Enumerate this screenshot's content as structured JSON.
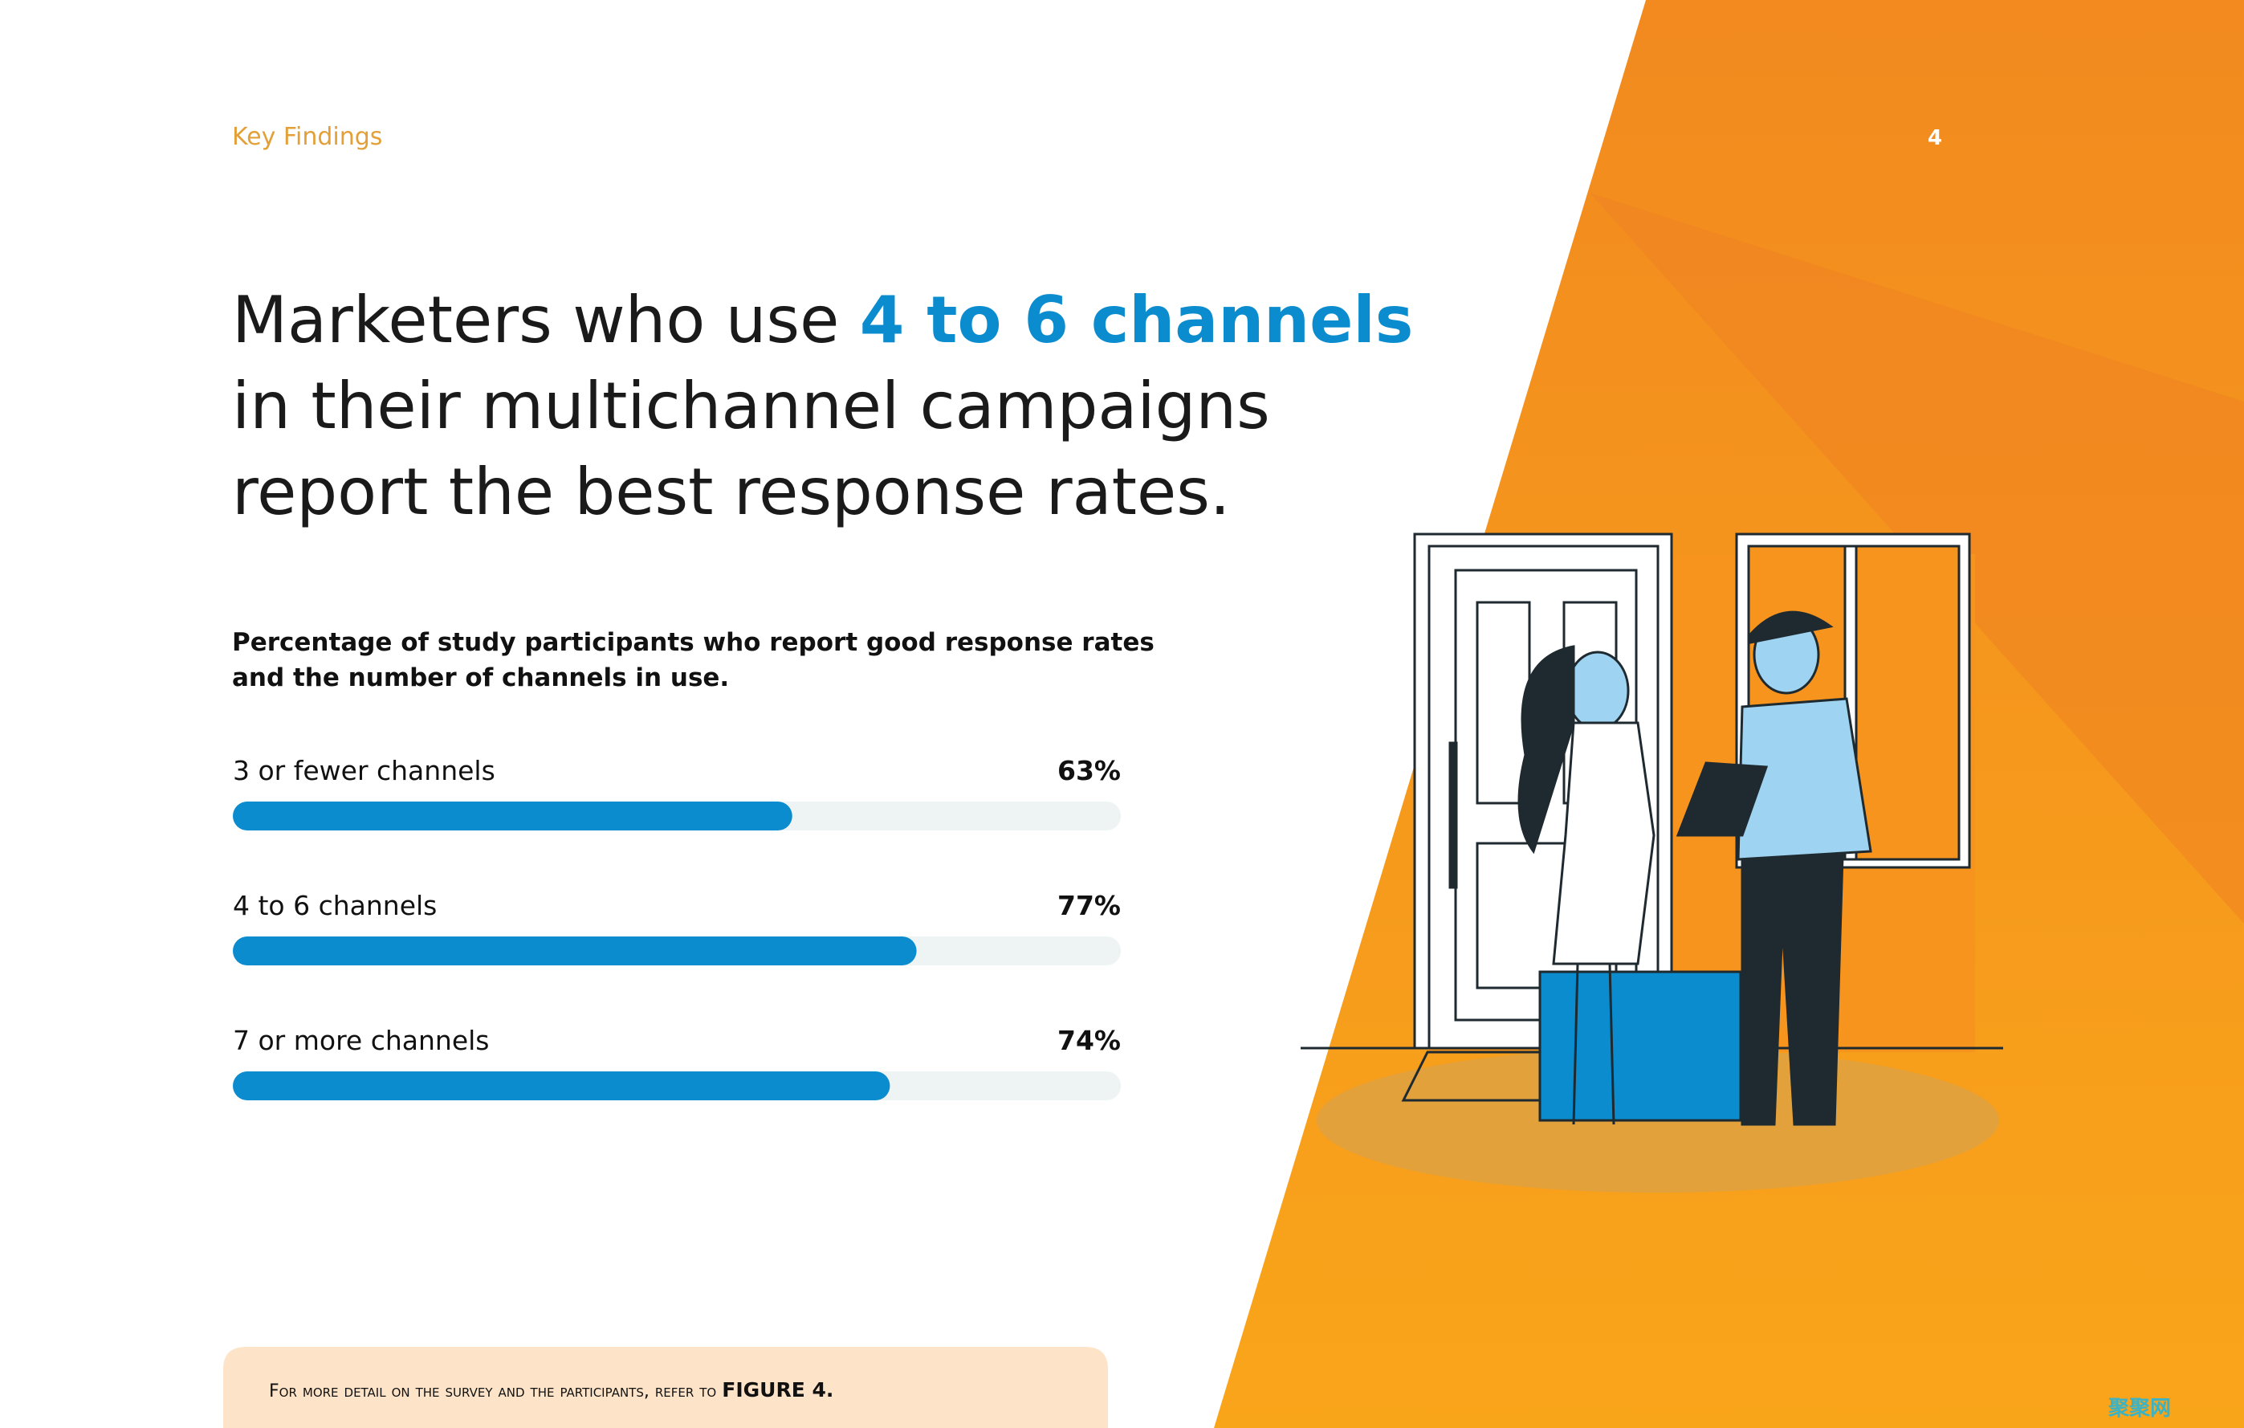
{
  "header": {
    "section": "Key Findings",
    "page_number": "4"
  },
  "headline": [
    "Marketers who use",
    "4 to 6 channels",
    "in their multichannel campaigns",
    "report the best response rates."
  ],
  "chart_data": {
    "type": "bar",
    "orientation": "horizontal",
    "title": "Percentage of study participants who report good response rates and the number of channels in use.",
    "categories": [
      "3 or fewer channels",
      "4 to 6 channels",
      "7 or more channels"
    ],
    "values": [
      63,
      77,
      74
    ],
    "value_labels": [
      "63%",
      "77%",
      "74%"
    ],
    "xlim": [
      0,
      100
    ],
    "color": "#0a8ccf",
    "track_color": "#eef3f4"
  },
  "footer": {
    "note": "For more detail on the survey and the participants, refer to",
    "reference": "FIGURE 4."
  },
  "watermark": "聚聚网"
}
